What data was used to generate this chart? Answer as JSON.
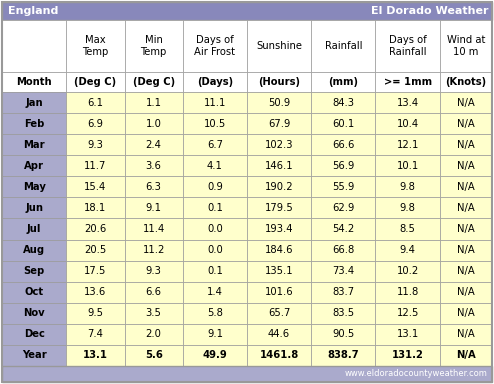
{
  "title_left": "England",
  "title_right": "El Dorado Weather",
  "title_bg": "#8888bb",
  "col_headers": [
    "",
    "Max\nTemp",
    "Min\nTemp",
    "Days of\nAir Frost",
    "Sunshine",
    "Rainfall",
    "Days of\nRainfall",
    "Wind at\n10 m"
  ],
  "sub_headers": [
    "Month",
    "(Deg C)",
    "(Deg C)",
    "(Days)",
    "(Hours)",
    "(mm)",
    ">= 1mm",
    "(Knots)"
  ],
  "data": [
    [
      "Jan",
      "6.1",
      "1.1",
      "11.1",
      "50.9",
      "84.3",
      "13.4",
      "N/A"
    ],
    [
      "Feb",
      "6.9",
      "1.0",
      "10.5",
      "67.9",
      "60.1",
      "10.4",
      "N/A"
    ],
    [
      "Mar",
      "9.3",
      "2.4",
      "6.7",
      "102.3",
      "66.6",
      "12.1",
      "N/A"
    ],
    [
      "Apr",
      "11.7",
      "3.6",
      "4.1",
      "146.1",
      "56.9",
      "10.1",
      "N/A"
    ],
    [
      "May",
      "15.4",
      "6.3",
      "0.9",
      "190.2",
      "55.9",
      "9.8",
      "N/A"
    ],
    [
      "Jun",
      "18.1",
      "9.1",
      "0.1",
      "179.5",
      "62.9",
      "9.8",
      "N/A"
    ],
    [
      "Jul",
      "20.6",
      "11.4",
      "0.0",
      "193.4",
      "54.2",
      "8.5",
      "N/A"
    ],
    [
      "Aug",
      "20.5",
      "11.2",
      "0.0",
      "184.6",
      "66.8",
      "9.4",
      "N/A"
    ],
    [
      "Sep",
      "17.5",
      "9.3",
      "0.1",
      "135.1",
      "73.4",
      "10.2",
      "N/A"
    ],
    [
      "Oct",
      "13.6",
      "6.6",
      "1.4",
      "101.6",
      "83.7",
      "11.8",
      "N/A"
    ],
    [
      "Nov",
      "9.5",
      "3.5",
      "5.8",
      "65.7",
      "83.5",
      "12.5",
      "N/A"
    ],
    [
      "Dec",
      "7.4",
      "2.0",
      "9.1",
      "44.6",
      "90.5",
      "13.1",
      "N/A"
    ],
    [
      "Year",
      "13.1",
      "5.6",
      "49.9",
      "1461.8",
      "838.7",
      "131.2",
      "N/A"
    ]
  ],
  "month_col_bg": "#aaaacc",
  "data_bg": "#ffffcc",
  "header_bg": "#ffffff",
  "footer_text": "www.eldoradocountyweather.com",
  "footer_bg": "#aaaacc",
  "border_color": "#999999",
  "n_cols": 8,
  "n_data_rows": 13
}
